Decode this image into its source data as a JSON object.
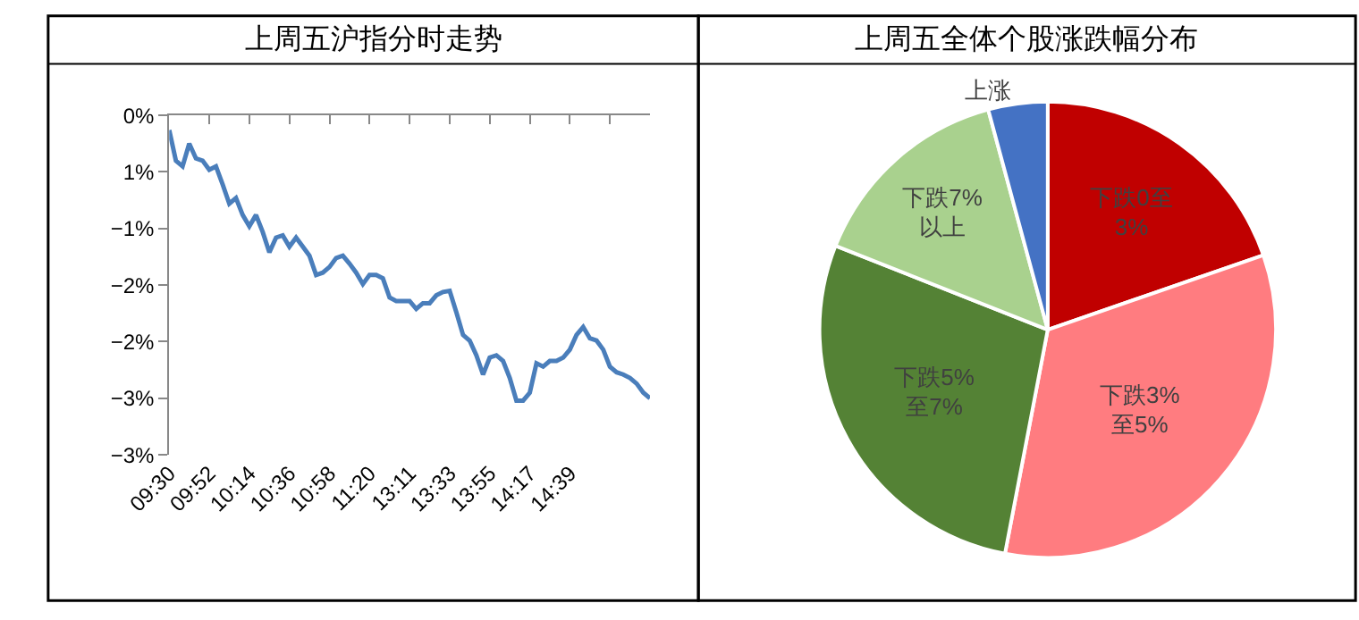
{
  "chart_data": [
    {
      "type": "line",
      "title": "上周五沪指分时走势",
      "color": "#4a7ebb",
      "categories": [
        "09:30",
        null,
        null,
        null,
        null,
        null,
        "09:52",
        null,
        null,
        null,
        null,
        null,
        "10:14",
        null,
        null,
        null,
        null,
        null,
        "10:36",
        null,
        null,
        null,
        null,
        null,
        "10:58",
        null,
        null,
        null,
        null,
        null,
        "11:20",
        null,
        null,
        null,
        null,
        null,
        "13:11",
        null,
        null,
        null,
        null,
        null,
        "13:33",
        null,
        null,
        null,
        null,
        null,
        "13:55",
        null,
        null,
        null,
        null,
        null,
        "14:17",
        null,
        null,
        null,
        null,
        null,
        "14:39",
        null,
        null,
        null,
        null,
        null,
        null,
        null,
        null,
        null,
        null,
        null,
        null
      ],
      "values": [
        -0.13,
        -0.4,
        -0.45,
        -0.25,
        -0.38,
        -0.4,
        -0.48,
        -0.45,
        -0.61,
        -0.78,
        -0.73,
        -0.88,
        -0.98,
        -0.88,
        -1.03,
        -1.21,
        -1.08,
        -1.06,
        -1.16,
        -1.08,
        -1.16,
        -1.24,
        -1.41,
        -1.39,
        -1.34,
        -1.26,
        -1.24,
        -1.31,
        -1.39,
        -1.49,
        -1.41,
        -1.41,
        -1.44,
        -1.61,
        -1.64,
        -1.64,
        -1.64,
        -1.71,
        -1.66,
        -1.66,
        -1.59,
        -1.56,
        -1.55,
        -1.74,
        -1.94,
        -1.99,
        -2.12,
        -2.29,
        -2.14,
        -2.12,
        -2.17,
        -2.32,
        -2.52,
        -2.52,
        -2.45,
        -2.19,
        -2.22,
        -2.17,
        -2.17,
        -2.14,
        -2.07,
        -1.94,
        -1.87,
        -1.97,
        -1.99,
        -2.07,
        -2.22,
        -2.27,
        -2.29,
        -2.32,
        -2.37,
        -2.45,
        -2.5
      ],
      "ylim": [
        -3,
        0
      ],
      "yticks": [
        {
          "value": 0,
          "label": "0%"
        },
        {
          "value": -0.5,
          "label": "1%"
        },
        {
          "value": -1,
          "label": "−1%"
        },
        {
          "value": -1.5,
          "label": "−2%"
        },
        {
          "value": -2,
          "label": "−2%"
        },
        {
          "value": -2.5,
          "label": "−3%"
        },
        {
          "value": -3,
          "label": "−3%"
        }
      ]
    },
    {
      "type": "pie",
      "title": "上周五全体个股涨跌幅分布",
      "categories": [
        "下跌0至\n3%",
        "下跌3%\n至5%",
        "下跌5%\n至7%",
        "下跌7%\n以上",
        "上涨"
      ],
      "values": [
        19.7,
        33.3,
        28.0,
        14.8,
        4.2
      ],
      "colors": [
        "#c00000",
        "#ff7c80",
        "#548235",
        "#a9d18e",
        "#4472c4"
      ]
    }
  ]
}
